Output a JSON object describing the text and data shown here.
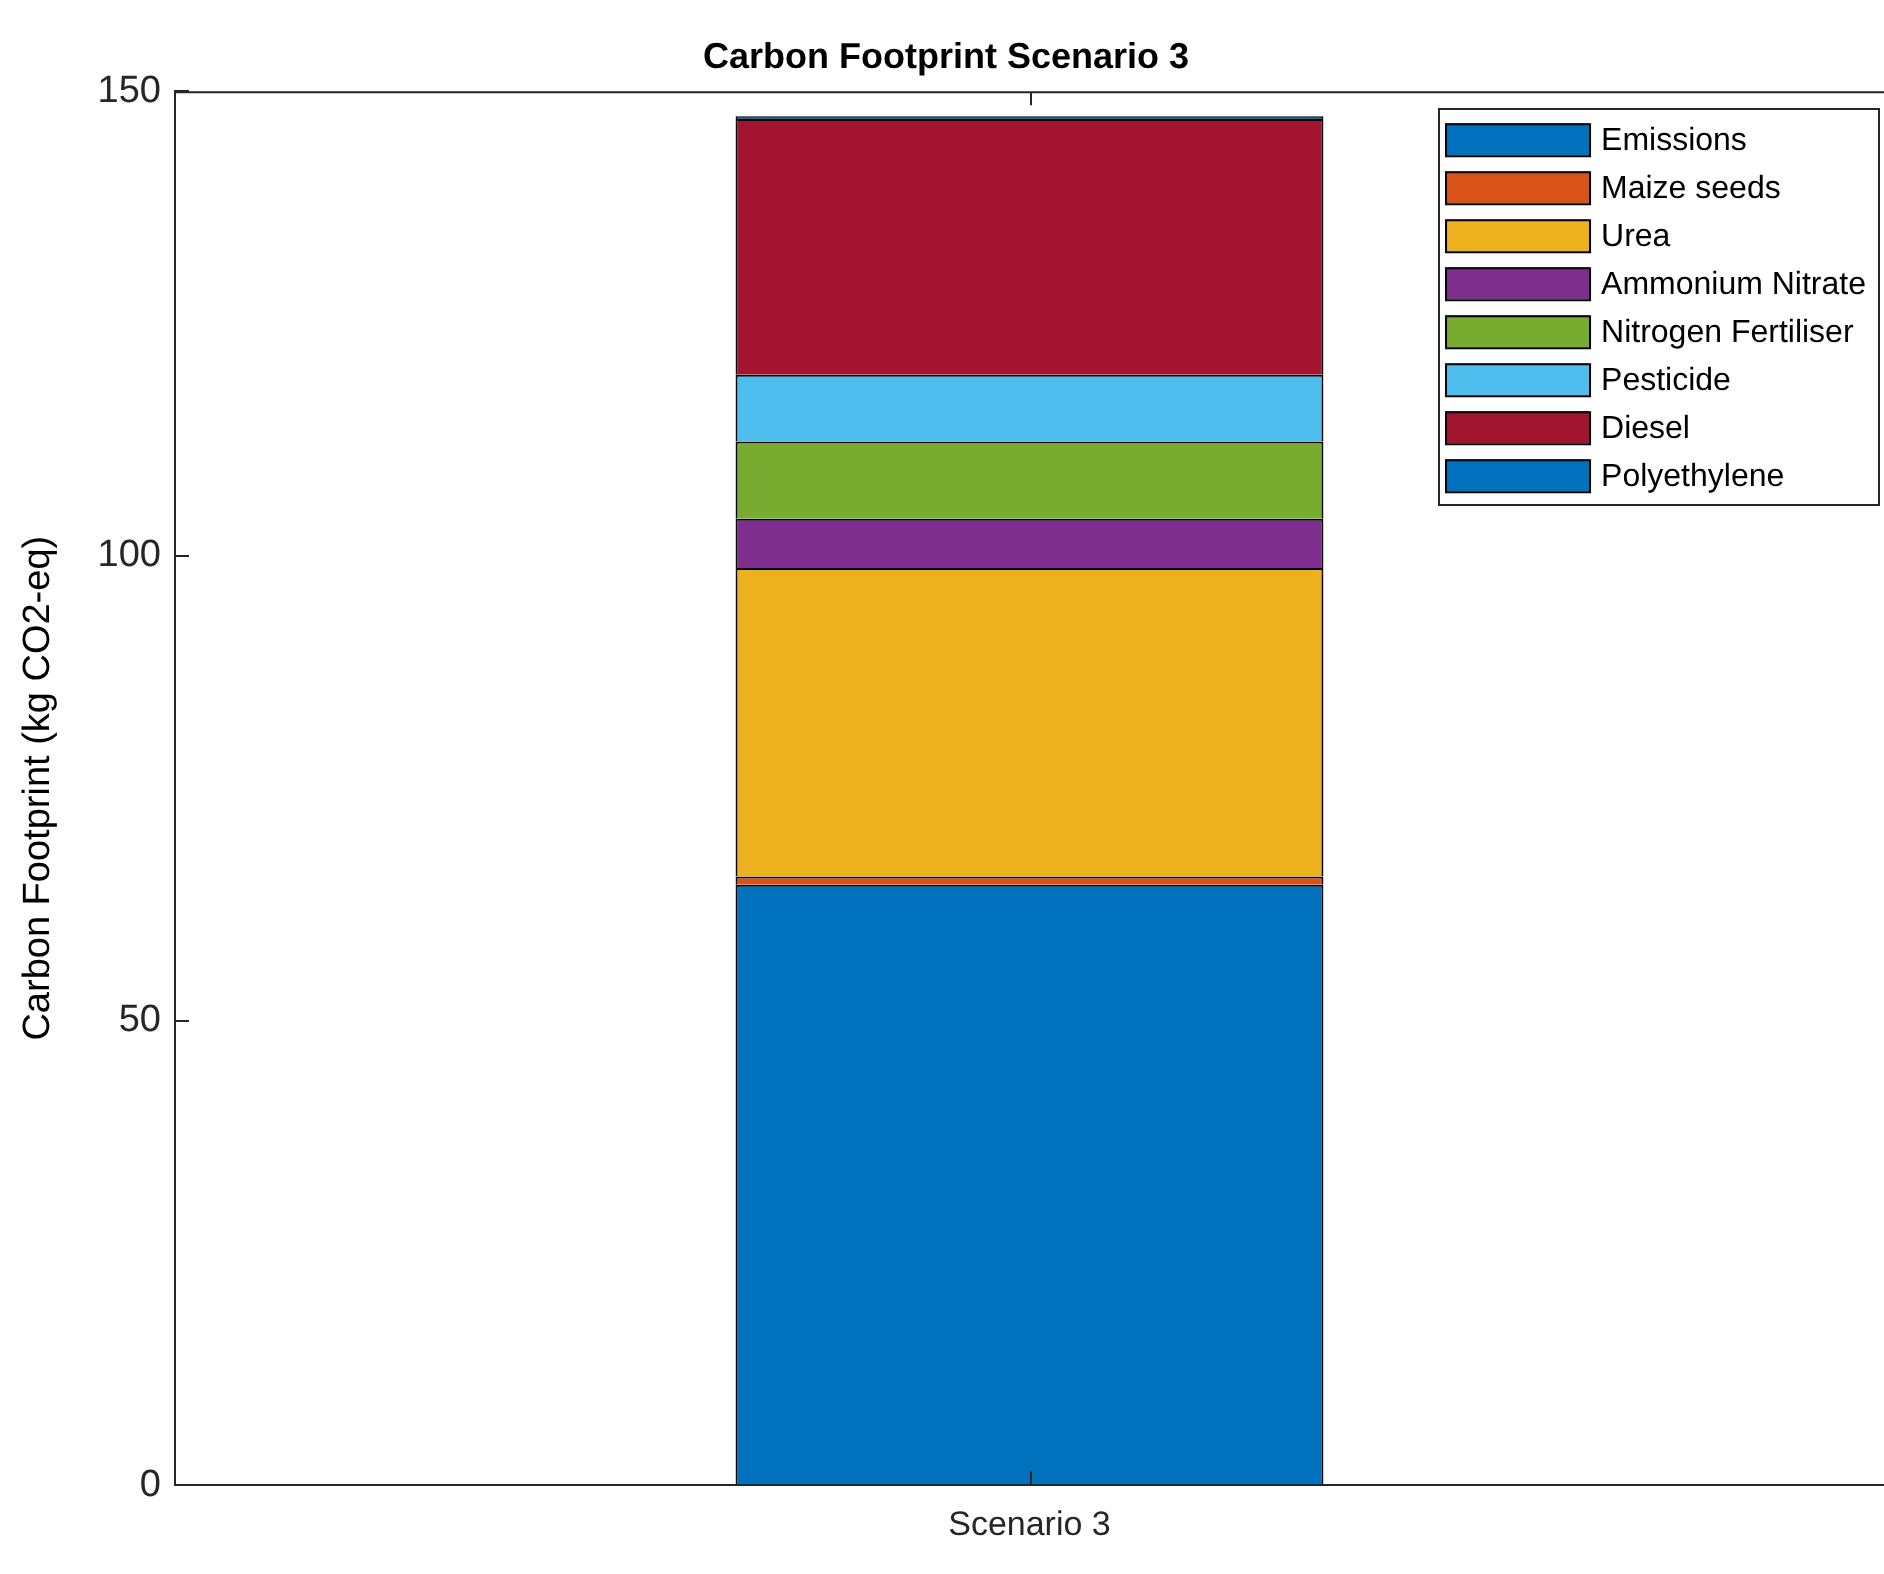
{
  "chart_data": {
    "type": "bar",
    "title": "Carbon Footprint Scenario 3",
    "ylabel": "Carbon Footprint (kg CO2-eq)",
    "categories": [
      "Scenario 3"
    ],
    "stacked": true,
    "ylim": [
      0,
      150
    ],
    "yticks": [
      0,
      50,
      100,
      150
    ],
    "grid": false,
    "legend": "top right",
    "series": [
      {
        "name": "Emissions",
        "color": "#0072bd",
        "values": [
          64.6
        ]
      },
      {
        "name": "Maize seeds",
        "color": "#d95319",
        "values": [
          0.9
        ]
      },
      {
        "name": "Urea",
        "color": "#edb120",
        "values": [
          33.2
        ]
      },
      {
        "name": "Ammonium Nitrate",
        "color": "#7e2f8e",
        "values": [
          5.3
        ]
      },
      {
        "name": "Nitrogen Fertiliser",
        "color": "#77ac30",
        "values": [
          8.3
        ]
      },
      {
        "name": "Pesticide",
        "color": "#4dbeee",
        "values": [
          7.2
        ]
      },
      {
        "name": "Diesel",
        "color": "#a2142f",
        "values": [
          27.5
        ]
      },
      {
        "name": "Polyethylene",
        "color": "#0072bd",
        "values": [
          0.3
        ]
      }
    ]
  }
}
